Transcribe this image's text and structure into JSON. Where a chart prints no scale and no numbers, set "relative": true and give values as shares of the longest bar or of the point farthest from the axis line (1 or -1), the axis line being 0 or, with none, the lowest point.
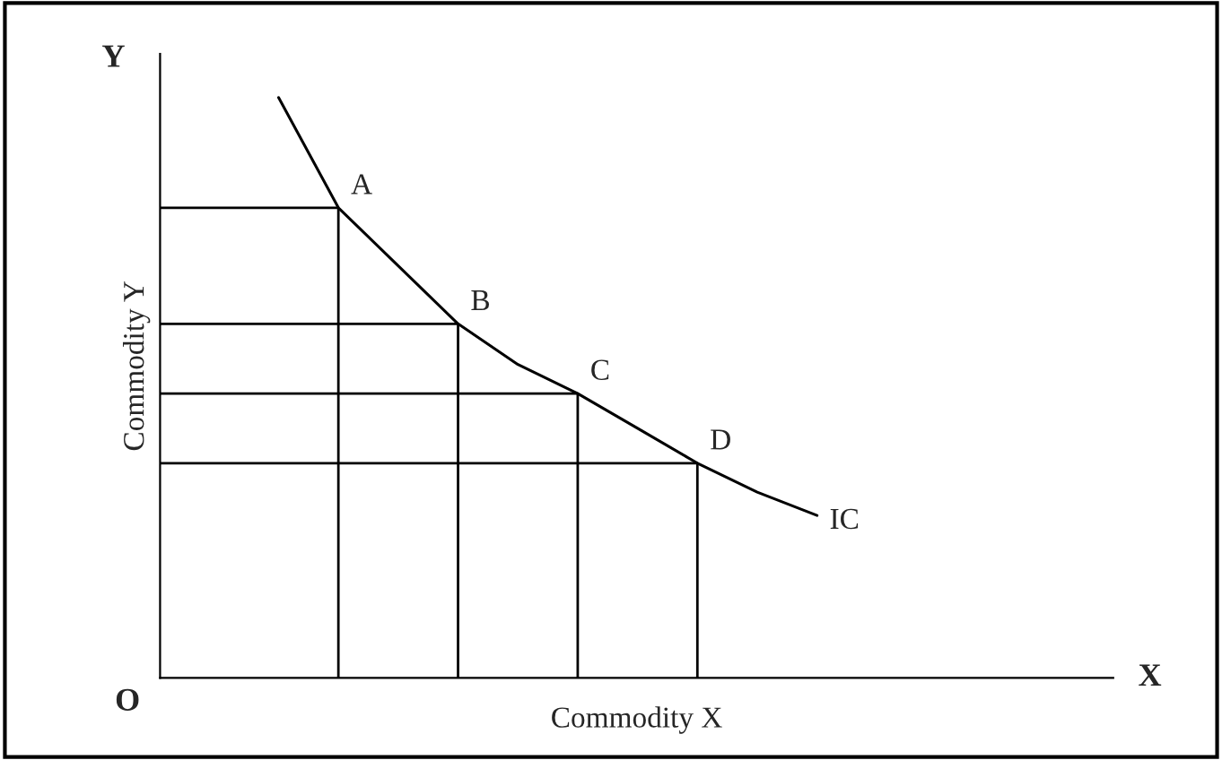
{
  "chart_data": {
    "type": "line",
    "relative": true,
    "xlabel": "Commodity X",
    "ylabel": "Commodity Y",
    "categories": [
      null,
      null,
      null,
      null,
      null,
      null,
      null,
      null,
      null,
      null
    ],
    "series": [
      {
        "color": "#000000",
        "values": [
          1.0,
          0.81,
          0.71,
          0.61,
          0.54,
          0.49,
          0.43,
          0.37,
          0.32,
          0.28
        ]
      }
    ],
    "ref_lines": [
      {
        "axis": "y",
        "value": 0.81,
        "color": "#000000"
      },
      {
        "axis": "y",
        "value": 0.61,
        "color": "#000000"
      },
      {
        "axis": "y",
        "value": 0.49,
        "color": "#000000"
      },
      {
        "axis": "y",
        "value": 0.37,
        "color": "#000000"
      }
    ],
    "annotations": [
      "A",
      "B",
      "C",
      "D",
      "IC",
      "Y",
      "X",
      "O"
    ]
  }
}
